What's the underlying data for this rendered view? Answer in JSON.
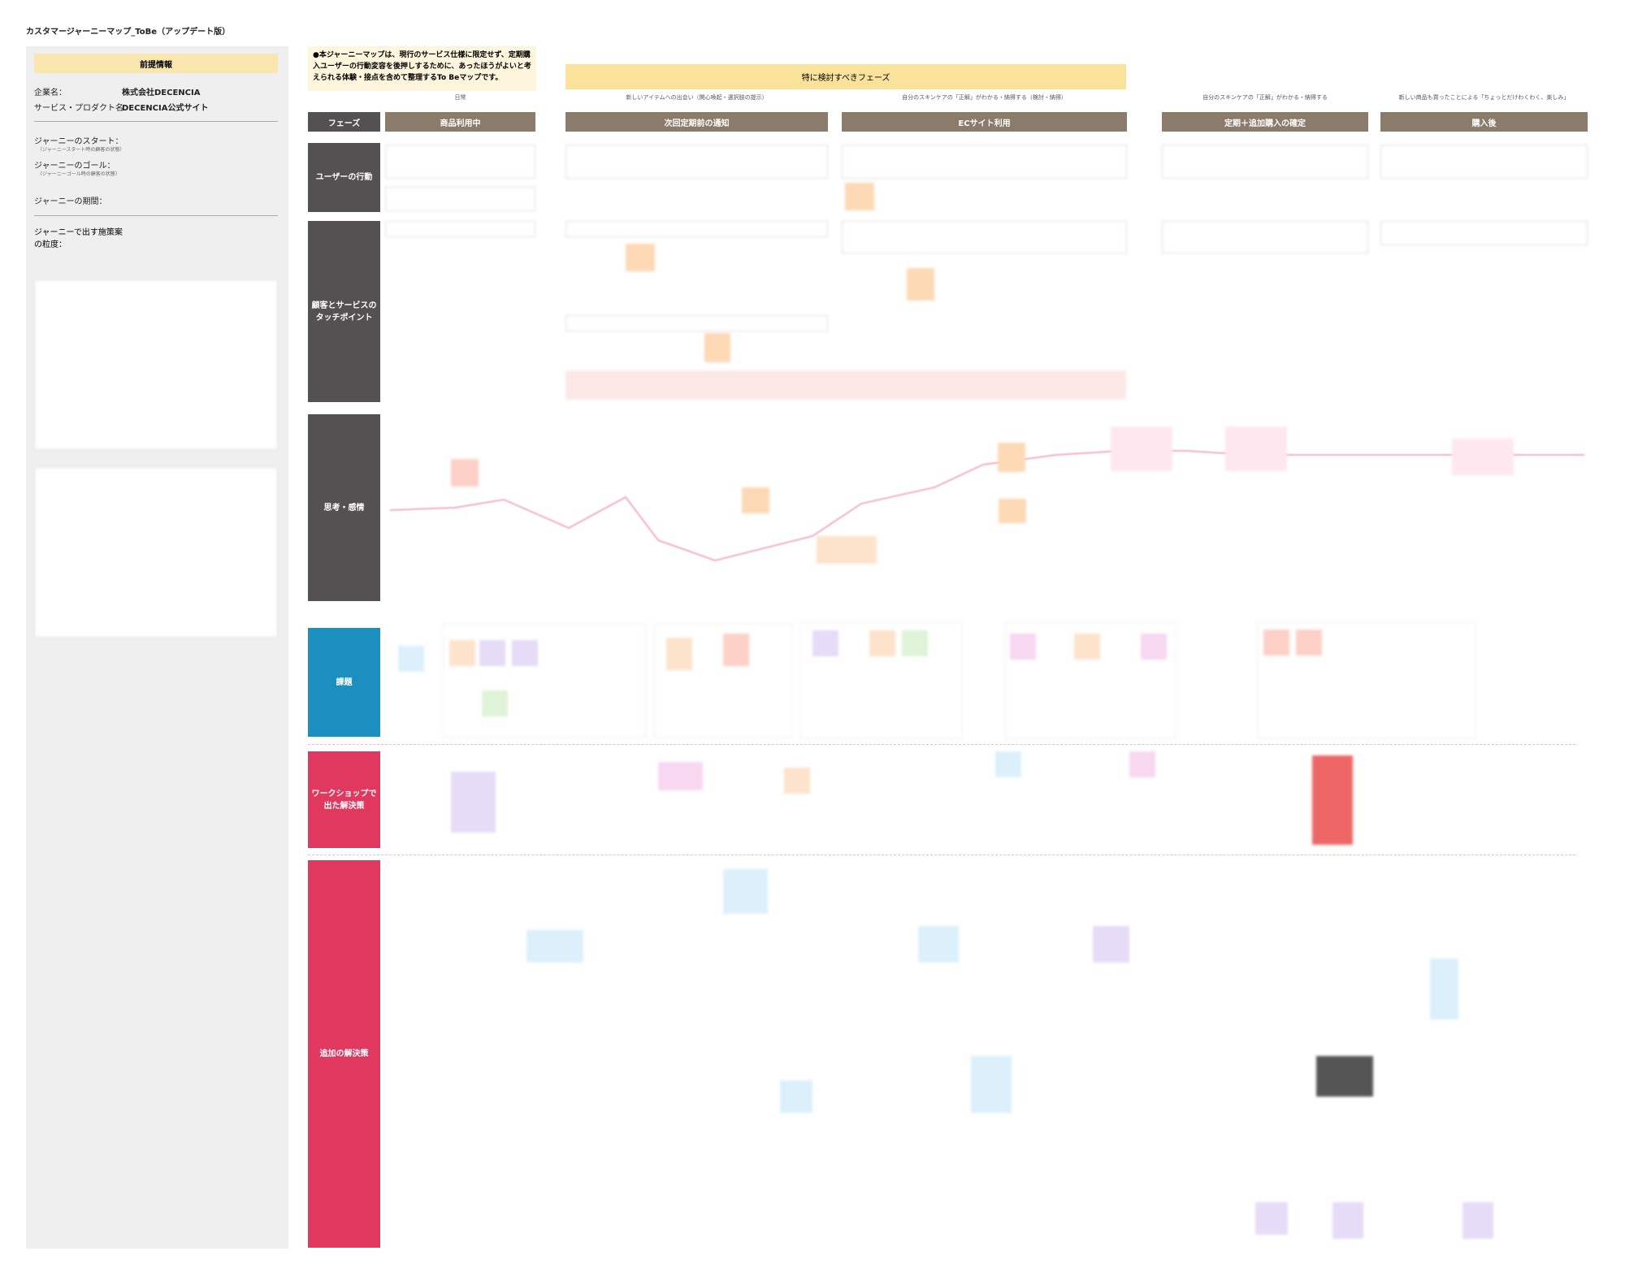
{
  "header": {
    "title": "カスタマージャーニーマップ_ToBe（アップデート版）"
  },
  "premise": {
    "heading": "前提情報",
    "fields": [
      {
        "label": "企業名：",
        "value": "株式会社DECENCIA"
      },
      {
        "label": "サービス・プロダクト名：",
        "value": "DECENCIA公式サイト"
      },
      {
        "label": "ジャーニーのスタート：",
        "sub": "（ジャーニースタート時の顧客の状態）"
      },
      {
        "label": "ジャーニーのゴール：",
        "sub": "（ジャーニーゴール時の顧客の状態）"
      },
      {
        "label": "ジャーニーの期間："
      },
      {
        "label": "ジャーニーで出す施策案の粒度："
      }
    ]
  },
  "note": "●本ジャーニーマップは、現行のサービス仕様に限定せず、定期購入ユーザーの行動変容を後押しするために、あったほうがよいと考えられる体験・接点を含めて整理するTo Beマップです。",
  "highlight": "特に検討すべきフェーズ",
  "phase_label": "フェーズ",
  "phases": [
    {
      "label": "商品利用中",
      "caption": "日常"
    },
    {
      "label": "次回定期前の通知",
      "caption": "新しいアイテムへの出会い（関心喚起・選択肢の提示）"
    },
    {
      "label": "ECサイト利用",
      "caption": "自分のスキンケアの「正解」がわかる・納得する（検討・納得）"
    },
    {
      "label": "定期＋追加購入の確定",
      "caption": "自分のスキンケアの「正解」がわかる・納得する"
    },
    {
      "label": "購入後",
      "caption": "新しい商品も買ったことによる「ちょっとだけわくわく、楽しみ」"
    }
  ],
  "rows": [
    "ユーザーの行動",
    "顧客とサービスのタッチポイント",
    "思考・感情",
    "課題",
    "ワークショップで出た解決策",
    "追加の解決策"
  ]
}
